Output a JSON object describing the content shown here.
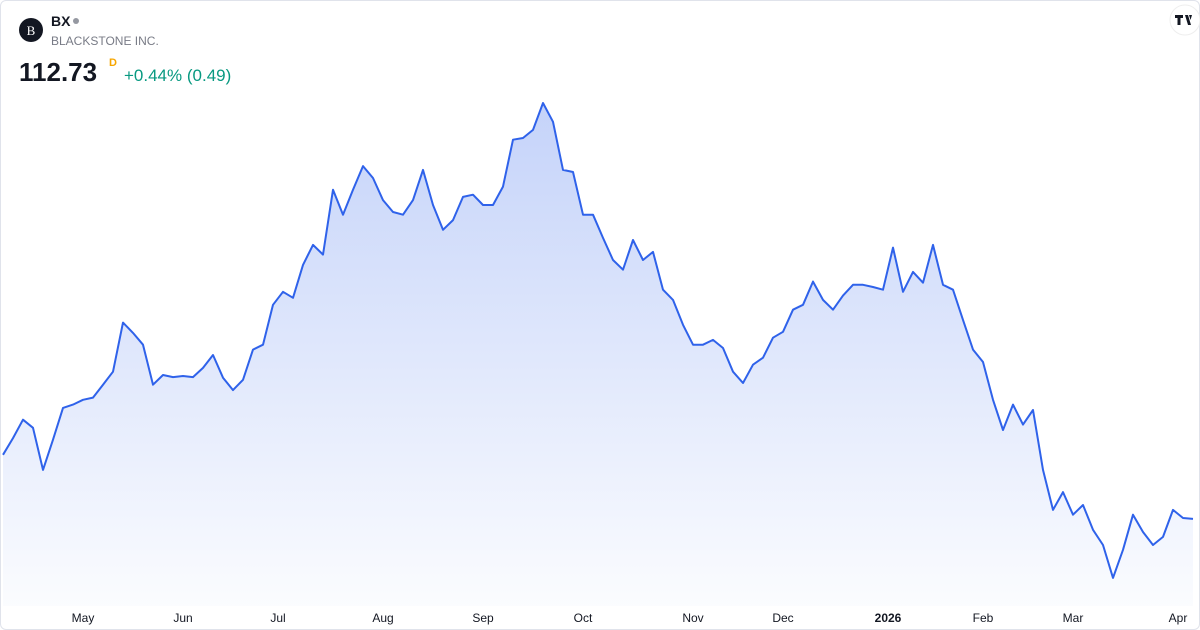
{
  "header": {
    "logo_letter": "B",
    "symbol": "BX",
    "name": "BLACKSTONE INC.",
    "price": "112.73",
    "interval": "D",
    "change": "+0.44% (0.49)"
  },
  "chart_data": {
    "type": "area",
    "color": "#2f62ea",
    "values": [
      124.6,
      127.7,
      131.1,
      129.6,
      121.8,
      127.4,
      133.3,
      133.9,
      134.8,
      135.2,
      137.6,
      140.0,
      149.1,
      147.2,
      145.0,
      137.6,
      139.4,
      139.0,
      139.2,
      139.0,
      140.7,
      143.1,
      138.9,
      136.6,
      138.5,
      144.1,
      145.0,
      152.4,
      154.8,
      153.7,
      159.8,
      163.5,
      161.7,
      173.7,
      169.1,
      173.7,
      178.1,
      175.9,
      171.8,
      169.6,
      169.1,
      171.8,
      177.4,
      170.9,
      166.3,
      168.1,
      172.4,
      172.8,
      170.9,
      170.9,
      174.3,
      183.0,
      183.3,
      184.8,
      189.8,
      186.3,
      177.4,
      177.0,
      169.1,
      169.1,
      164.8,
      160.7,
      158.9,
      164.4,
      160.7,
      162.2,
      155.2,
      153.3,
      148.7,
      145.0,
      145.0,
      145.9,
      144.4,
      140.0,
      137.9,
      141.3,
      142.6,
      146.3,
      147.4,
      151.5,
      152.4,
      156.7,
      153.3,
      151.5,
      154.1,
      156.1,
      156.1,
      155.7,
      155.2,
      163.0,
      154.8,
      158.5,
      156.5,
      163.5,
      156.1,
      155.2,
      149.6,
      144.1,
      141.8,
      134.8,
      129.2,
      133.9,
      130.2,
      132.9,
      121.8,
      114.4,
      117.7,
      113.5,
      115.3,
      110.7,
      107.9,
      101.8,
      107.0,
      113.5,
      110.3,
      107.9,
      109.4,
      114.4,
      112.9,
      112.73
    ],
    "ylim": [
      97.7,
      192.2
    ],
    "xticks": [
      {
        "value": 8,
        "label": "May"
      },
      {
        "value": 18,
        "label": "Jun"
      },
      {
        "value": 27.5,
        "label": "Jul"
      },
      {
        "value": 38,
        "label": "Aug"
      },
      {
        "value": 48,
        "label": "Sep"
      },
      {
        "value": 58,
        "label": "Oct"
      },
      {
        "value": 69,
        "label": "Nov"
      },
      {
        "value": 78,
        "label": "Dec"
      },
      {
        "value": 88.5,
        "label": "2026",
        "bold": true
      },
      {
        "value": 98,
        "label": "Feb"
      },
      {
        "value": 107,
        "label": "Mar"
      },
      {
        "value": 117.5,
        "label": "Apr"
      }
    ]
  }
}
